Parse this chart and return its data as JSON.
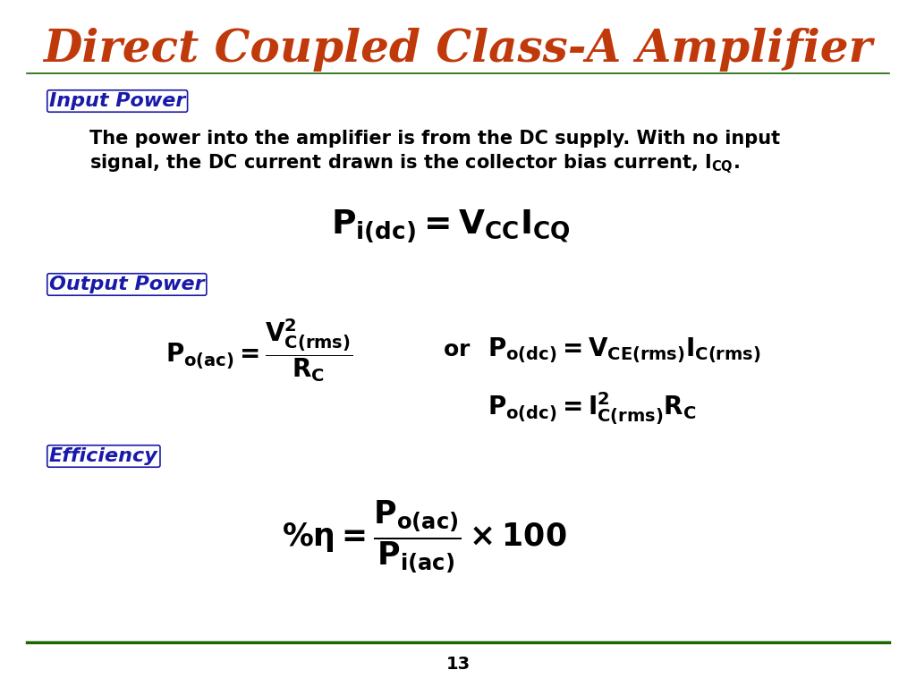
{
  "title": "Direct Coupled Class-A Amplifier",
  "title_color": "#c0390b",
  "title_fontsize": 36,
  "bg_color": "#ffffff",
  "section_color": "#1a1aaa",
  "body_color": "#000000",
  "footer_line_color": "#1a6600",
  "page_number": "13",
  "input_power_label": "Input Power",
  "output_power_label": "Output Power",
  "efficiency_label": "Efficiency"
}
